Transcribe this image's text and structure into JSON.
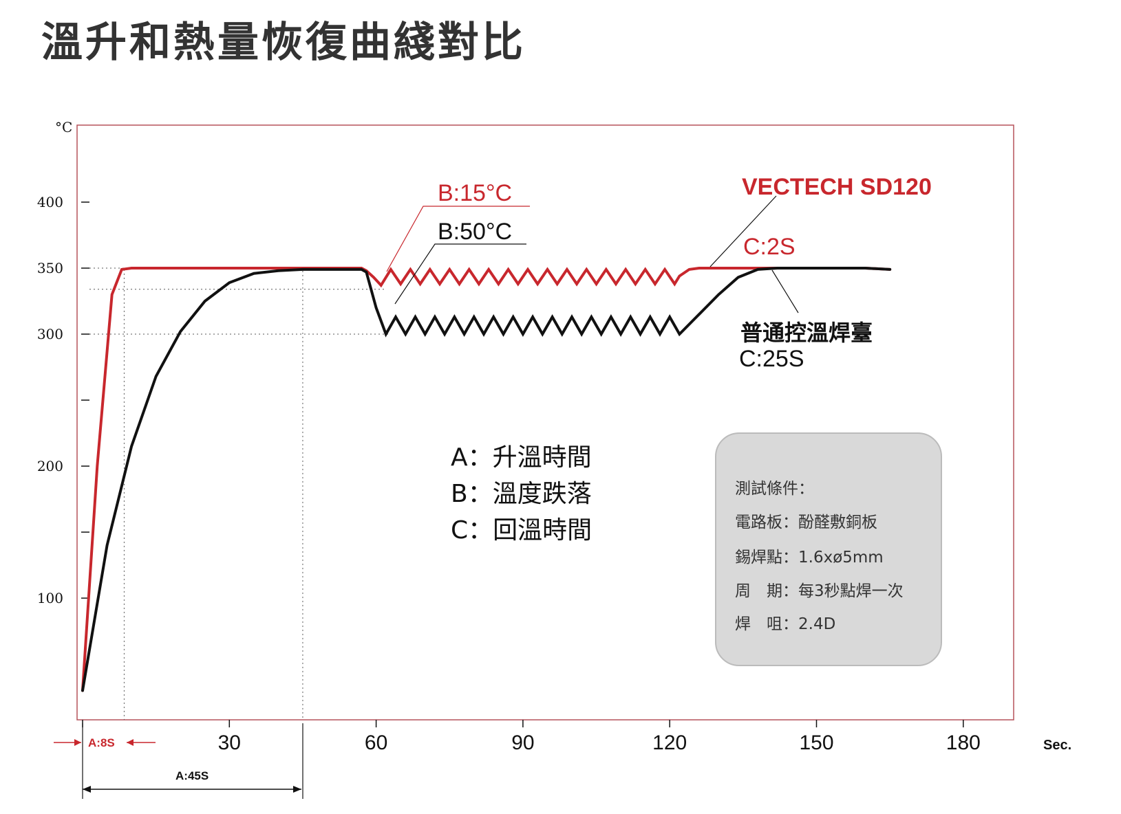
{
  "page_title": "溫升和熱量恢復曲綫對比",
  "colors": {
    "vectech": "#c8272d",
    "ordinary": "#111111",
    "frame": "#b5525a",
    "conditions_box": "#d9d9d9"
  },
  "axes": {
    "y_unit": "°C",
    "x_unit": "Sec.",
    "y_ticks": [
      {
        "value": 100,
        "label": "100"
      },
      {
        "value": 150,
        "label": ""
      },
      {
        "value": 200,
        "label": "200"
      },
      {
        "value": 250,
        "label": ""
      },
      {
        "value": 300,
        "label": "300"
      },
      {
        "value": 350,
        "label": "350"
      },
      {
        "value": 400,
        "label": "400"
      }
    ],
    "x_ticks": [
      {
        "value": 30,
        "label": "30"
      },
      {
        "value": 60,
        "label": "60"
      },
      {
        "value": 90,
        "label": "90"
      },
      {
        "value": 120,
        "label": "120"
      },
      {
        "value": 150,
        "label": "150"
      },
      {
        "value": 180,
        "label": "180"
      }
    ]
  },
  "annotations": {
    "b_vectech": "B:15°C",
    "b_ordinary": "B:50°C",
    "c_vectech": "C:2S",
    "c_ordinary": "C:25S",
    "a_vectech": "A:8S",
    "a_ordinary": "A:45S"
  },
  "series_labels": {
    "vectech": "VECTECH SD120",
    "ordinary": "普通控溫焊臺"
  },
  "legend": [
    "A：升溫時間",
    "B：溫度跌落",
    "C：回溫時間"
  ],
  "conditions": {
    "title": "測試條件：",
    "rows": [
      "電路板：酚醛敷銅板",
      "錫焊點：1.6xø5mm",
      "周　期：每3秒點焊一次",
      "焊　咀：2.4D"
    ]
  },
  "chart_data": {
    "type": "line",
    "title": "溫升和熱量恢復曲綫對比",
    "xlabel": "Sec.",
    "ylabel": "°C",
    "xlim": [
      0,
      180
    ],
    "ylim": [
      0,
      440
    ],
    "grid": false,
    "series": [
      {
        "name": "VECTECH SD120",
        "color": "#c8272d",
        "x": [
          0,
          3,
          6,
          8,
          10,
          20,
          30,
          40,
          45,
          50,
          57,
          58,
          59.5,
          61,
          63,
          65,
          67,
          69,
          71,
          73,
          75,
          77,
          79,
          81,
          83,
          85,
          87,
          89,
          91,
          93,
          95,
          97,
          99,
          101,
          103,
          105,
          107,
          109,
          111,
          113,
          115,
          117,
          119,
          121,
          122,
          124,
          126,
          130,
          140,
          150,
          160,
          165
        ],
        "y": [
          30,
          200,
          330,
          349,
          350,
          350,
          350,
          350,
          350,
          350,
          350,
          348,
          343,
          337,
          349,
          338,
          349,
          338,
          349,
          338,
          349,
          338,
          349,
          338,
          349,
          338,
          349,
          338,
          349,
          338,
          349,
          338,
          349,
          338,
          349,
          338,
          349,
          338,
          349,
          338,
          349,
          338,
          349,
          338,
          344,
          349,
          350,
          350,
          350,
          350,
          350,
          349
        ]
      },
      {
        "name": "普通控溫焊臺",
        "color": "#111111",
        "x": [
          0,
          5,
          10,
          15,
          20,
          25,
          30,
          35,
          40,
          45,
          50,
          57,
          58,
          60,
          62,
          64,
          66,
          68,
          70,
          72,
          74,
          76,
          78,
          80,
          82,
          84,
          86,
          88,
          90,
          92,
          94,
          96,
          98,
          100,
          102,
          104,
          106,
          108,
          110,
          112,
          114,
          116,
          118,
          120,
          122,
          126,
          130,
          134,
          138,
          142,
          150,
          160,
          165
        ],
        "y": [
          30,
          140,
          215,
          268,
          302,
          325,
          339,
          346,
          348,
          349,
          349,
          349,
          347,
          320,
          300,
          313,
          300,
          313,
          300,
          313,
          300,
          313,
          300,
          313,
          300,
          313,
          300,
          313,
          300,
          313,
          300,
          313,
          300,
          313,
          300,
          313,
          300,
          313,
          300,
          313,
          300,
          313,
          300,
          313,
          300,
          315,
          330,
          343,
          349,
          350,
          350,
          350,
          349
        ]
      }
    ]
  }
}
